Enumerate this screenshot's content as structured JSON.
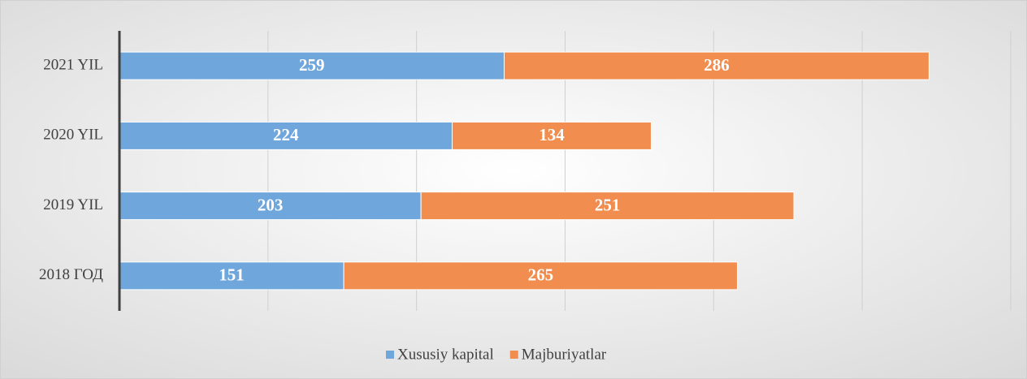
{
  "chart_data": {
    "type": "stacked_barh",
    "categories": [
      "2021 YIL",
      "2020 YIL",
      "2019 YIL",
      "2018 ГОД"
    ],
    "series": [
      {
        "name": "Xususiy kapital",
        "color": "#6fa6dc",
        "values": [
          259,
          224,
          203,
          151
        ]
      },
      {
        "name": "Majburiyatlar",
        "color": "#f08d4f",
        "values": [
          286,
          134,
          251,
          265
        ]
      }
    ],
    "xlim": [
      0,
      600
    ],
    "xticks": [
      0,
      100,
      200,
      300,
      400,
      500,
      600
    ],
    "grid": true,
    "legend": "bottom"
  }
}
